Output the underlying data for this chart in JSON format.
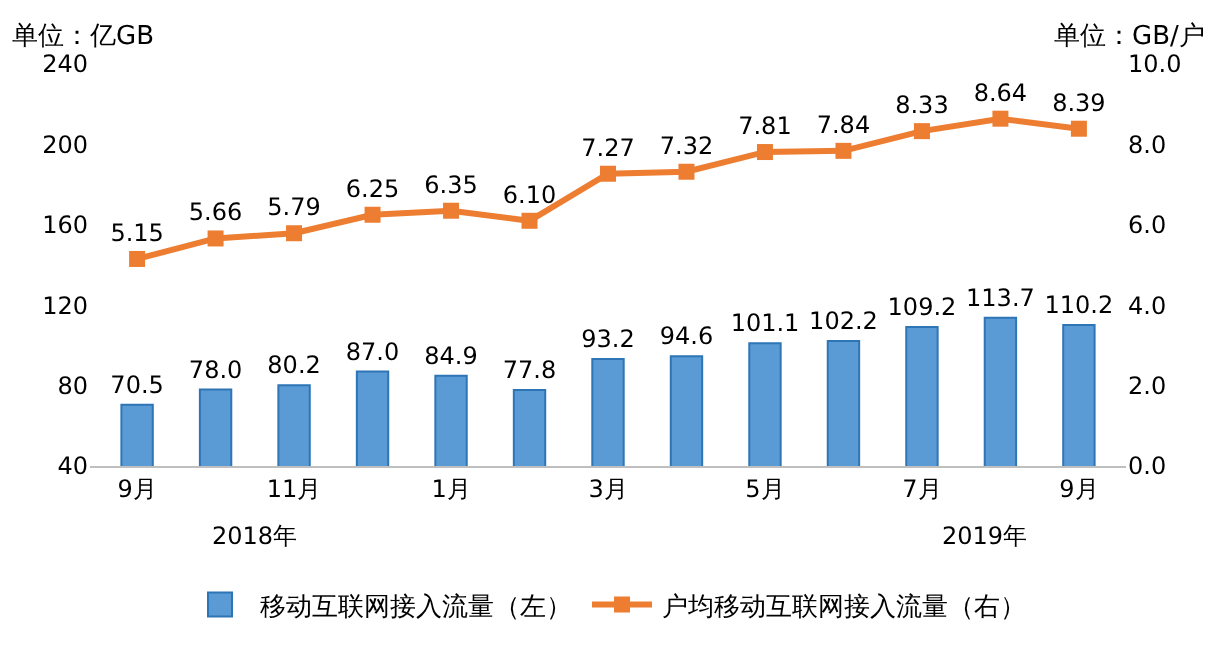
{
  "chart_data": {
    "type": "bar",
    "categories": [
      "9月",
      null,
      "11月",
      null,
      "1月",
      null,
      "3月",
      null,
      "5月",
      null,
      "7月",
      null,
      "9月"
    ],
    "ylabel": "单位：亿GB",
    "y2label": "单位：GB/户",
    "ylim": [
      40,
      240
    ],
    "yticks": [
      40,
      80,
      120,
      160,
      200,
      240
    ],
    "y2lim": [
      0,
      10
    ],
    "y2ticks": [
      {
        "value": 0,
        "label": "0.0"
      },
      {
        "value": 2,
        "label": "2.0"
      },
      {
        "value": 4,
        "label": "4.0"
      },
      {
        "value": 6,
        "label": "6.0"
      },
      {
        "value": 8,
        "label": "8.0"
      },
      {
        "value": 10,
        "label": "10.0"
      }
    ],
    "series": [
      {
        "name": "移动互联网接入流量（左）",
        "color": "#5b9bd5",
        "values": [
          70.5,
          78.0,
          80.2,
          87.0,
          84.9,
          77.8,
          93.2,
          94.6,
          101.1,
          102.2,
          109.2,
          113.7,
          110.2
        ],
        "value_labels": [
          "70.5",
          "78.0",
          "80.2",
          "87.0",
          "84.9",
          "77.8",
          "93.2",
          "94.6",
          "101.1",
          "102.2",
          "109.2",
          "113.7",
          "110.2"
        ]
      },
      {
        "name": "户均移动互联网接入流量（右）",
        "type": "line",
        "axis": "y2",
        "color": "#ed7d31",
        "marker": "square",
        "values": [
          5.15,
          5.66,
          5.79,
          6.25,
          6.35,
          6.1,
          7.27,
          7.32,
          7.81,
          7.84,
          8.33,
          8.64,
          8.39
        ],
        "value_labels": [
          "5.15",
          "5.66",
          "5.79",
          "6.25",
          "6.35",
          "6.10",
          "7.27",
          "7.32",
          "7.81",
          "7.84",
          "8.33",
          "8.64",
          "8.39"
        ]
      }
    ],
    "annotations": [
      "2018年",
      "2019年"
    ],
    "legend": "bottom",
    "grid": false
  }
}
